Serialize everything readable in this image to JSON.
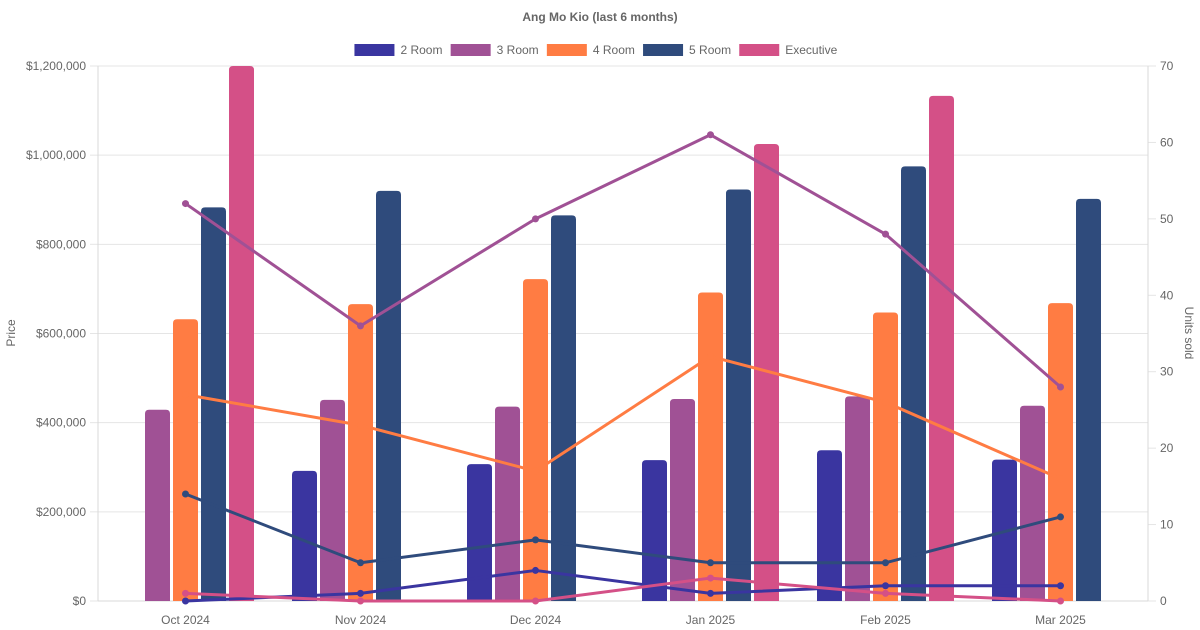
{
  "chart_data": {
    "type": "bar",
    "title": "Ang Mo Kio (last 6 months)",
    "categories": [
      "Oct 2024",
      "Nov 2024",
      "Dec 2024",
      "Jan 2025",
      "Feb 2025",
      "Mar 2025"
    ],
    "xlabel": "",
    "ylabel": "Price",
    "y2label": "Units sold",
    "ylim": [
      0,
      1200000
    ],
    "y2lim": [
      0,
      70
    ],
    "yticks": [
      "$0",
      "$200,000",
      "$400,000",
      "$600,000",
      "$800,000",
      "$1,000,000",
      "$1,200,000"
    ],
    "ytick_values": [
      0,
      200000,
      400000,
      600000,
      800000,
      1000000,
      1200000
    ],
    "y2ticks": [
      "0",
      "10",
      "20",
      "30",
      "40",
      "50",
      "60",
      "70"
    ],
    "y2tick_values": [
      0,
      10,
      20,
      30,
      40,
      50,
      60,
      70
    ],
    "grid": true,
    "legend_position": "top",
    "series": [
      {
        "name": "2 Room",
        "color": "#3a35a0",
        "price": [
          null,
          292000,
          307000,
          316000,
          338000,
          317000
        ],
        "units": [
          0,
          1,
          4,
          1,
          2,
          2
        ]
      },
      {
        "name": "3 Room",
        "color": "#a05195",
        "price": [
          429000,
          451000,
          436000,
          453000,
          459000,
          438000
        ],
        "units": [
          52,
          36,
          50,
          61,
          48,
          28
        ]
      },
      {
        "name": "4 Room",
        "color": "#ff7c43",
        "price": [
          632000,
          666000,
          722000,
          692000,
          647000,
          668000
        ],
        "units": [
          27,
          23,
          17,
          32,
          26,
          16
        ]
      },
      {
        "name": "5 Room",
        "color": "#2f4b7c",
        "price": [
          883000,
          920000,
          865000,
          923000,
          975000,
          902000
        ],
        "units": [
          14,
          5,
          8,
          5,
          5,
          11
        ]
      },
      {
        "name": "Executive",
        "color": "#d45087",
        "price": [
          1200000,
          null,
          null,
          1025000,
          1133000,
          null
        ],
        "units": [
          1,
          0,
          0,
          3,
          1,
          0
        ]
      }
    ]
  }
}
